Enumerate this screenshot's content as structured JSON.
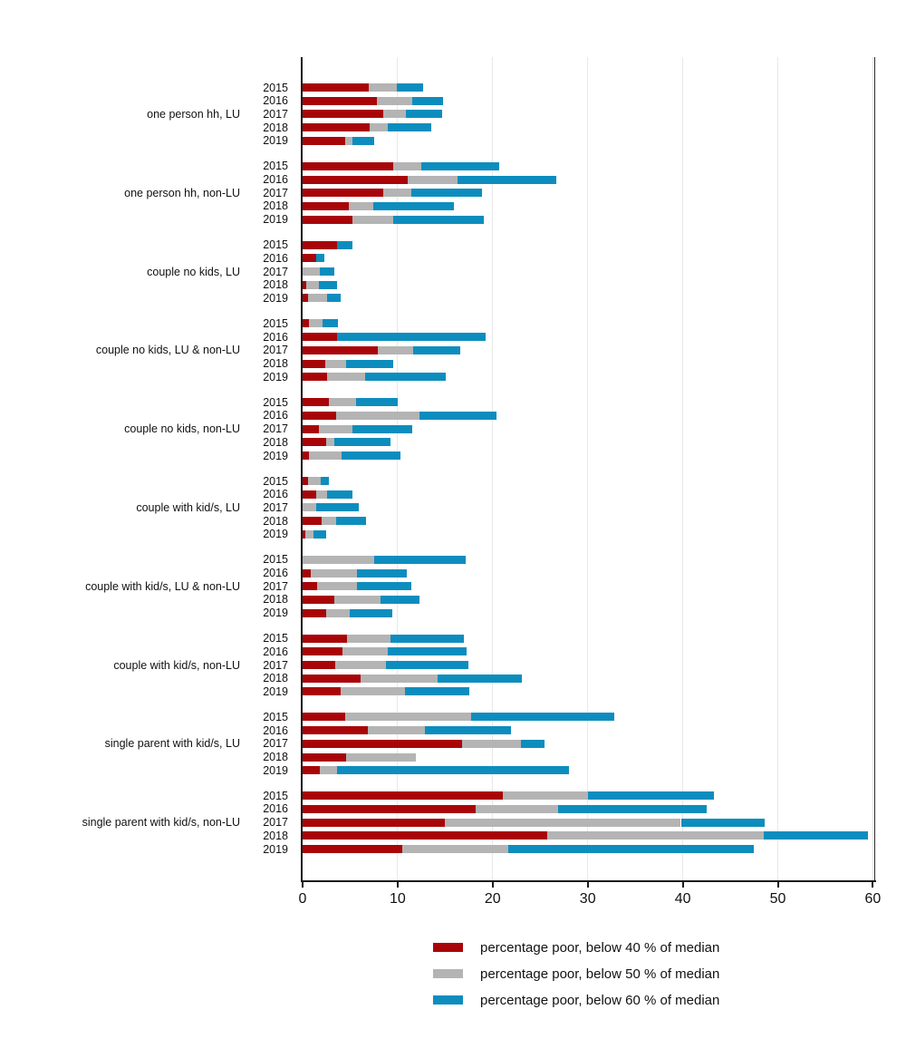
{
  "chart_data": {
    "type": "bar",
    "orientation": "horizontal",
    "stacking": "cumulative thresholds: segment ends mark % below 40/50/60 of median",
    "title": "",
    "xlabel": "",
    "ylabel": "",
    "grid": "vertical light gray lines at ticks",
    "legend_position": "below plot",
    "x_ticks": [
      0,
      10,
      20,
      30,
      40,
      50,
      60
    ],
    "xlim": [
      0,
      62
    ],
    "years": [
      "2015",
      "2016",
      "2017",
      "2018",
      "2019"
    ],
    "legend": [
      {
        "label": "percentage poor, below 40 % of median",
        "color": "#a80508"
      },
      {
        "label": "percentage poor, below 50 % of median",
        "color": "#b4b4b4"
      },
      {
        "label": "percentage poor, below 60 % of median",
        "color": "#0d8dbe"
      }
    ],
    "groups": [
      {
        "label": "one person hh, LU",
        "rows": [
          {
            "year": "2015",
            "below40": 7.0,
            "below50": 9.9,
            "below60": 12.7
          },
          {
            "year": "2016",
            "below40": 7.8,
            "below50": 11.5,
            "below60": 14.8
          },
          {
            "year": "2017",
            "below40": 8.5,
            "below50": 10.9,
            "below60": 14.7
          },
          {
            "year": "2018",
            "below40": 7.1,
            "below50": 9.0,
            "below60": 13.5
          },
          {
            "year": "2019",
            "below40": 4.5,
            "below50": 5.2,
            "below60": 7.5
          }
        ]
      },
      {
        "label": "one person hh, non-LU",
        "rows": [
          {
            "year": "2015",
            "below40": 9.5,
            "below50": 12.5,
            "below60": 20.7
          },
          {
            "year": "2016",
            "below40": 11.1,
            "below50": 16.3,
            "below60": 26.7
          },
          {
            "year": "2017",
            "below40": 8.5,
            "below50": 11.4,
            "below60": 18.9
          },
          {
            "year": "2018",
            "below40": 4.9,
            "below50": 7.4,
            "below60": 15.9
          },
          {
            "year": "2019",
            "below40": 5.2,
            "below50": 9.5,
            "below60": 19.1
          }
        ]
      },
      {
        "label": "couple no kids, LU",
        "rows": [
          {
            "year": "2015",
            "below40": 3.6,
            "below50": 3.6,
            "below60": 5.2
          },
          {
            "year": "2016",
            "below40": 1.4,
            "below50": 1.4,
            "below60": 2.3
          },
          {
            "year": "2017",
            "below40": 0.0,
            "below50": 1.8,
            "below60": 3.3
          },
          {
            "year": "2018",
            "below40": 0.4,
            "below50": 1.7,
            "below60": 3.6
          },
          {
            "year": "2019",
            "below40": 0.6,
            "below50": 2.6,
            "below60": 4.0
          }
        ]
      },
      {
        "label": "couple no kids, LU & non-LU",
        "rows": [
          {
            "year": "2015",
            "below40": 0.7,
            "below50": 2.1,
            "below60": 3.7
          },
          {
            "year": "2016",
            "below40": 3.6,
            "below50": 3.6,
            "below60": 19.3
          },
          {
            "year": "2017",
            "below40": 7.9,
            "below50": 11.6,
            "below60": 16.6
          },
          {
            "year": "2018",
            "below40": 2.4,
            "below50": 4.6,
            "below60": 9.5
          },
          {
            "year": "2019",
            "below40": 2.6,
            "below50": 6.6,
            "below60": 15.1
          }
        ]
      },
      {
        "label": "couple no kids, non-LU",
        "rows": [
          {
            "year": "2015",
            "below40": 2.8,
            "below50": 5.6,
            "below60": 10.0
          },
          {
            "year": "2016",
            "below40": 3.5,
            "below50": 12.3,
            "below60": 20.4
          },
          {
            "year": "2017",
            "below40": 1.7,
            "below50": 5.2,
            "below60": 11.5
          },
          {
            "year": "2018",
            "below40": 2.5,
            "below50": 3.3,
            "below60": 9.2
          },
          {
            "year": "2019",
            "below40": 0.7,
            "below50": 4.1,
            "below60": 10.3
          }
        ]
      },
      {
        "label": "couple with kid/s, LU",
        "rows": [
          {
            "year": "2015",
            "below40": 0.6,
            "below50": 1.9,
            "below60": 2.8
          },
          {
            "year": "2016",
            "below40": 1.4,
            "below50": 2.6,
            "below60": 5.2
          },
          {
            "year": "2017",
            "below40": 0.0,
            "below50": 1.4,
            "below60": 5.9
          },
          {
            "year": "2018",
            "below40": 2.0,
            "below50": 3.5,
            "below60": 6.7
          },
          {
            "year": "2019",
            "below40": 0.3,
            "below50": 1.1,
            "below60": 2.5
          }
        ]
      },
      {
        "label": "couple with kid/s, LU & non-LU",
        "rows": [
          {
            "year": "2015",
            "below40": 0.0,
            "below50": 7.5,
            "below60": 17.2
          },
          {
            "year": "2016",
            "below40": 0.9,
            "below50": 5.7,
            "below60": 11.0
          },
          {
            "year": "2017",
            "below40": 1.5,
            "below50": 5.7,
            "below60": 11.4
          },
          {
            "year": "2018",
            "below40": 3.3,
            "below50": 8.2,
            "below60": 12.3
          },
          {
            "year": "2019",
            "below40": 2.5,
            "below50": 5.0,
            "below60": 9.4
          }
        ]
      },
      {
        "label": "couple with kid/s, non-LU",
        "rows": [
          {
            "year": "2015",
            "below40": 4.7,
            "below50": 9.2,
            "below60": 17.0
          },
          {
            "year": "2016",
            "below40": 4.2,
            "below50": 9.0,
            "below60": 17.3
          },
          {
            "year": "2017",
            "below40": 3.4,
            "below50": 8.8,
            "below60": 17.4
          },
          {
            "year": "2018",
            "below40": 6.1,
            "below50": 14.2,
            "below60": 23.1
          },
          {
            "year": "2019",
            "below40": 4.0,
            "below50": 10.8,
            "below60": 17.5
          }
        ]
      },
      {
        "label": "single parent with kid/s, LU",
        "rows": [
          {
            "year": "2015",
            "below40": 4.5,
            "below50": 17.7,
            "below60": 32.8
          },
          {
            "year": "2016",
            "below40": 6.9,
            "below50": 12.9,
            "below60": 21.9
          },
          {
            "year": "2017",
            "below40": 16.8,
            "below50": 23.0,
            "below60": 25.5
          },
          {
            "year": "2018",
            "below40": 4.6,
            "below50": 11.9,
            "below60": 11.9
          },
          {
            "year": "2019",
            "below40": 1.8,
            "below50": 3.6,
            "below60": 28.0
          }
        ]
      },
      {
        "label": "single parent with kid/s, non-LU",
        "rows": [
          {
            "year": "2015",
            "below40": 21.1,
            "below50": 30.0,
            "below60": 43.3
          },
          {
            "year": "2016",
            "below40": 18.2,
            "below50": 26.9,
            "below60": 42.5
          },
          {
            "year": "2017",
            "below40": 15.0,
            "below50": 39.8,
            "below60": 48.6
          },
          {
            "year": "2018",
            "below40": 25.7,
            "below50": 48.5,
            "below60": 59.5
          },
          {
            "year": "2019",
            "below40": 10.5,
            "below50": 21.6,
            "below60": 47.5
          }
        ]
      }
    ]
  }
}
